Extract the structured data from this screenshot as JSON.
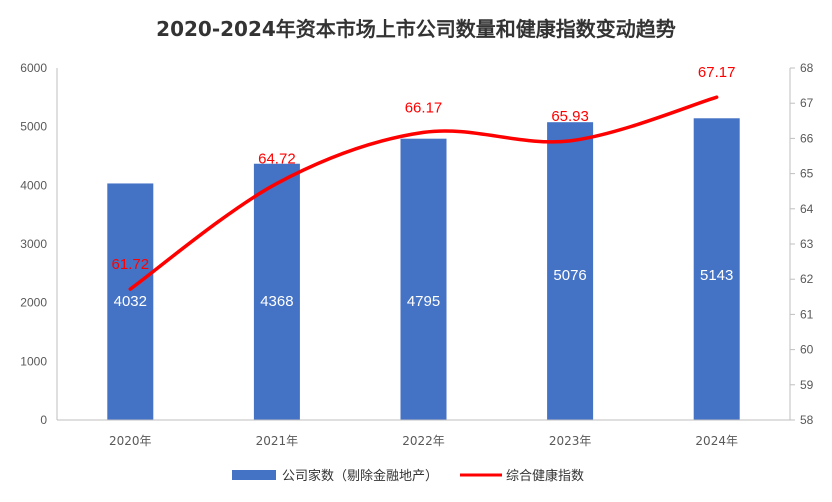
{
  "chart_data": {
    "type": "bar",
    "title": "2020-2024年资本市场上市公司数量和健康指数变动趋势",
    "categories": [
      "2020年",
      "2021年",
      "2022年",
      "2023年",
      "2024年"
    ],
    "series": [
      {
        "name": "公司家数（剔除金融地产）",
        "type": "bar",
        "axis": "left",
        "color": "#4472c4",
        "values": [
          4032,
          4368,
          4795,
          5076,
          5143
        ],
        "labels": [
          "4032",
          "4368",
          "4795",
          "5076",
          "5143"
        ]
      },
      {
        "name": "综合健康指数",
        "type": "line",
        "axis": "right",
        "color": "#ff0000",
        "smooth": true,
        "values": [
          61.72,
          64.72,
          66.17,
          65.93,
          67.17
        ],
        "labels": [
          "61.72",
          "64.72",
          "66.17",
          "65.93",
          "67.17"
        ]
      }
    ],
    "left_axis": {
      "min": 0,
      "max": 6000,
      "step": 1000,
      "ticks": [
        "0",
        "1000",
        "2000",
        "3000",
        "4000",
        "5000",
        "6000"
      ]
    },
    "right_axis": {
      "min": 58,
      "max": 68,
      "step": 1,
      "ticks": [
        "58",
        "59",
        "60",
        "61",
        "62",
        "63",
        "64",
        "65",
        "66",
        "67",
        "68"
      ]
    },
    "legend": {
      "position": "bottom"
    },
    "grid": false
  }
}
